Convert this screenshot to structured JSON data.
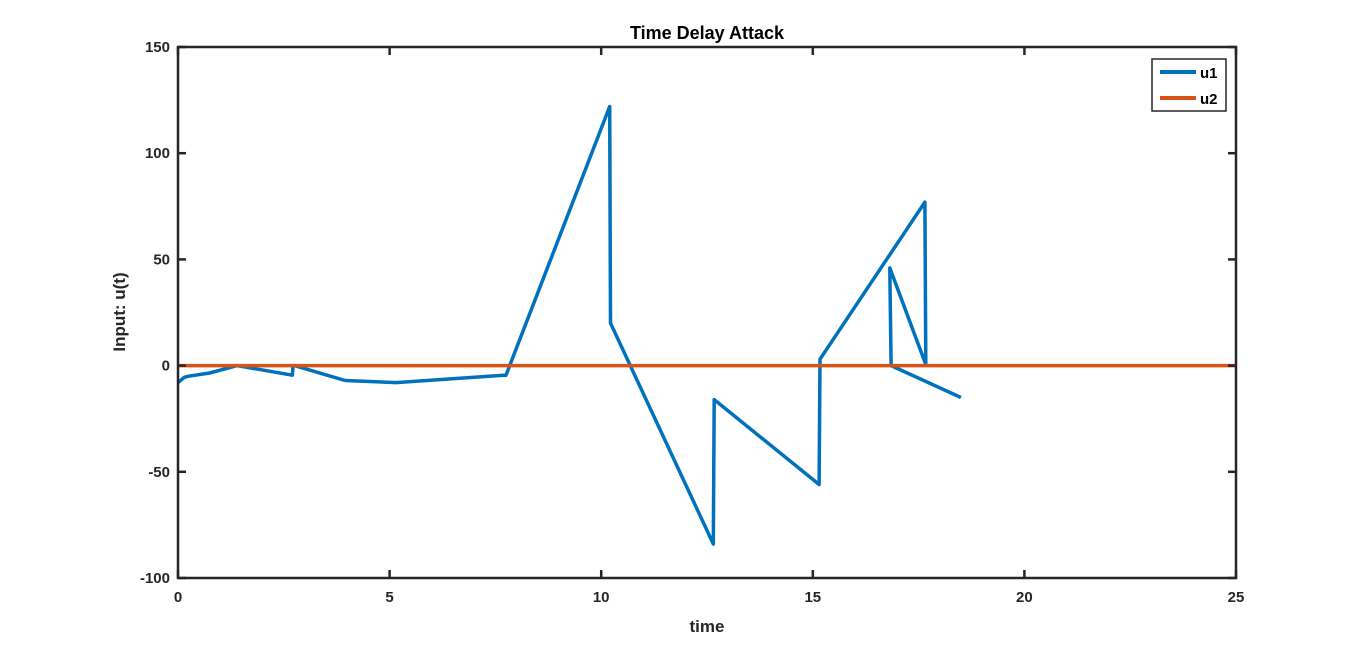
{
  "chart_data": {
    "type": "line",
    "title": "Time Delay Attack",
    "xlabel": "time",
    "ylabel": "Input: u(t)",
    "xlim": [
      0,
      25
    ],
    "ylim": [
      -100,
      150
    ],
    "xticks": [
      0,
      5,
      10,
      15,
      20,
      25
    ],
    "yticks": [
      -100,
      -50,
      0,
      50,
      100,
      150
    ],
    "xtick_labels": [
      "0",
      "5",
      "10",
      "15",
      "20",
      "25"
    ],
    "ytick_labels": [
      "-100",
      "-50",
      "0",
      "50",
      "100",
      "150"
    ],
    "grid": false,
    "legend_position": "top-right",
    "series": [
      {
        "name": "u1",
        "color": "#0072BD",
        "x": [
          0,
          0.15,
          0.25,
          0.75,
          1.4,
          2.7,
          2.72,
          2.75,
          3.95,
          5.15,
          7.7,
          7.75,
          10.2,
          10.22,
          12.65,
          12.67,
          15.15,
          15.17,
          17.65,
          17.67,
          16.82,
          16.85,
          18.5
        ],
        "y": [
          -8,
          -5.5,
          -5,
          -3.5,
          0,
          -4.5,
          0,
          0,
          -7,
          -8,
          -4.5,
          -4.5,
          122,
          20,
          -84,
          -16,
          -56,
          3,
          77,
          0.5,
          46,
          0,
          -15
        ]
      },
      {
        "name": "u2",
        "color": "#D95319",
        "x": [
          0,
          25
        ],
        "y": [
          0,
          0
        ]
      }
    ]
  }
}
